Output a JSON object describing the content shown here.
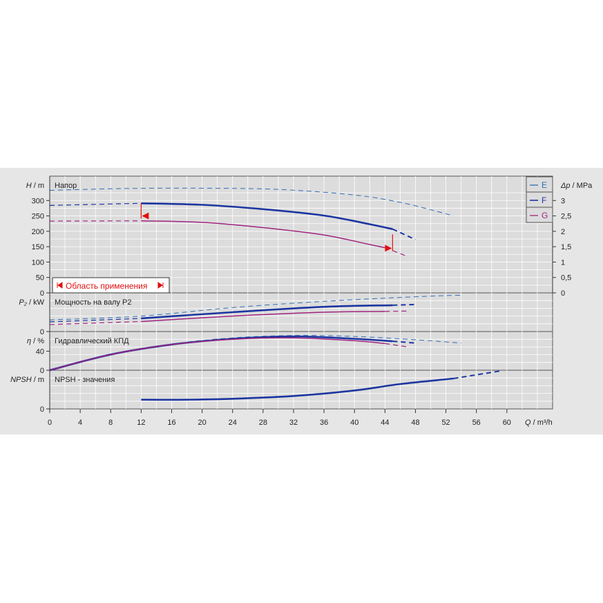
{
  "colors": {
    "E": "#2f6db3",
    "F": "#1c35a0",
    "G": "#a0247e",
    "range": "#e01010",
    "panel_bg": "#dcdcdc",
    "outer_bg": "#e6e6e6",
    "grid": "#ffffff"
  },
  "chart_data": {
    "type": "line",
    "x_axis": {
      "label_q": "Q",
      "label_unit": " / m³/h",
      "range": [
        0,
        66
      ],
      "ticks": [
        "0",
        "4",
        "8",
        "12",
        "16",
        "20",
        "24",
        "28",
        "32",
        "36",
        "40",
        "44",
        "48",
        "52",
        "56",
        "60"
      ]
    },
    "legend": [
      "E",
      "F",
      "G"
    ],
    "legend_position": "top-right",
    "panels": [
      {
        "id": "head",
        "label": "Напор",
        "y_label_symbol": "H",
        "y_label_unit": " / m",
        "ylim": [
          0,
          350
        ],
        "ticks": [
          "0",
          "50",
          "100",
          "150",
          "200",
          "250",
          "300"
        ],
        "right_axis": {
          "symbol": "Δp",
          "unit": " / MPa",
          "range": [
            0,
            3.5
          ],
          "ticks": [
            "0",
            "0,5",
            "1",
            "1,5",
            "2",
            "2,5",
            "3"
          ]
        },
        "series": [
          {
            "name": "E",
            "dashed": [
              [
                0,
                333
              ],
              [
                10,
                339
              ],
              [
                20,
                340
              ],
              [
                30,
                336
              ],
              [
                40,
                318
              ],
              [
                46,
                294
              ],
              [
                50,
                270
              ],
              [
                53,
                250
              ]
            ]
          },
          {
            "name": "F",
            "dashed": [
              [
                0,
                284
              ],
              [
                12,
                291
              ]
            ],
            "solid": [
              [
                12,
                291
              ],
              [
                20,
                286
              ],
              [
                28,
                272
              ],
              [
                36,
                251
              ],
              [
                42,
                223
              ],
              [
                45,
                207
              ]
            ],
            "dashed_end": [
              [
                45,
                207
              ],
              [
                48,
                173
              ]
            ]
          },
          {
            "name": "G",
            "dashed": [
              [
                0,
                233
              ],
              [
                12,
                234
              ]
            ],
            "solid": [
              [
                12,
                234
              ],
              [
                20,
                229
              ],
              [
                28,
                212
              ],
              [
                36,
                188
              ],
              [
                42,
                157
              ],
              [
                44,
                147
              ]
            ],
            "dashed_end": [
              [
                44,
                147
              ],
              [
                47,
                118
              ]
            ]
          }
        ],
        "range_limits": {
          "label": "Область применения",
          "left": {
            "q": 12,
            "h_top": 291,
            "h_bottom": 250
          },
          "right": {
            "q": 45,
            "h_top": 190,
            "h_bottom": 145
          }
        }
      },
      {
        "id": "power",
        "label": "Мощность на валу P2",
        "y_label_symbol": "P₂",
        "y_label_unit": " / kW",
        "ylim": [
          0,
          100
        ],
        "ticks": [
          "0"
        ],
        "series": [
          {
            "name": "E",
            "dashed": [
              [
                0,
                30
              ],
              [
                12,
                40
              ],
              [
                24,
                62
              ],
              [
                36,
                78
              ],
              [
                48,
                90
              ],
              [
                54,
                94
              ]
            ]
          },
          {
            "name": "F",
            "dashed": [
              [
                0,
                25
              ],
              [
                12,
                34
              ]
            ],
            "solid": [
              [
                12,
                34
              ],
              [
                24,
                50
              ],
              [
                36,
                64
              ],
              [
                45,
                68
              ]
            ],
            "dashed_end": [
              [
                45,
                68
              ],
              [
                48,
                70
              ]
            ]
          },
          {
            "name": "G",
            "dashed": [
              [
                0,
                18
              ],
              [
                12,
                26
              ]
            ],
            "solid": [
              [
                12,
                26
              ],
              [
                24,
                40
              ],
              [
                36,
                50
              ],
              [
                44,
                52
              ]
            ],
            "dashed_end": [
              [
                44,
                52
              ],
              [
                47,
                53
              ]
            ]
          }
        ]
      },
      {
        "id": "efficiency",
        "label": "Гидравлический КПД",
        "y_label_symbol": "η",
        "y_label_unit": " / %",
        "ylim": [
          0,
          90
        ],
        "ticks": [
          "0",
          "40"
        ],
        "series": [
          {
            "name": "E",
            "dashed": [
              [
                0,
                0
              ],
              [
                8,
                34
              ],
              [
                16,
                55
              ],
              [
                24,
                68
              ],
              [
                32,
                73
              ],
              [
                40,
                71
              ],
              [
                48,
                64
              ],
              [
                54,
                57
              ]
            ]
          },
          {
            "name": "F",
            "solid": [
              [
                0,
                0
              ],
              [
                8,
                33
              ],
              [
                16,
                54
              ],
              [
                24,
                66
              ],
              [
                32,
                71
              ],
              [
                40,
                66
              ],
              [
                45,
                61
              ]
            ],
            "dashed_end": [
              [
                45,
                61
              ],
              [
                48,
                57
              ]
            ]
          },
          {
            "name": "G",
            "solid": [
              [
                0,
                0
              ],
              [
                8,
                33
              ],
              [
                16,
                54
              ],
              [
                24,
                65
              ],
              [
                32,
                68
              ],
              [
                40,
                62
              ],
              [
                44,
                56
              ]
            ],
            "dashed_end": [
              [
                44,
                56
              ],
              [
                47,
                49
              ]
            ]
          }
        ]
      },
      {
        "id": "npsh",
        "label": "NPSH - значения",
        "y_label_symbol": "NPSH",
        "y_label_unit": " / m",
        "ylim": [
          0,
          42
        ],
        "ticks": [
          "0"
        ],
        "series": [
          {
            "name": "F",
            "solid": [
              [
                12,
                10
              ],
              [
                18,
                10
              ],
              [
                24,
                11
              ],
              [
                32,
                14
              ],
              [
                40,
                20
              ],
              [
                46,
                27
              ],
              [
                53,
                33
              ]
            ],
            "dashed_end": [
              [
                53,
                33
              ],
              [
                59,
                41
              ]
            ]
          }
        ]
      }
    ]
  }
}
